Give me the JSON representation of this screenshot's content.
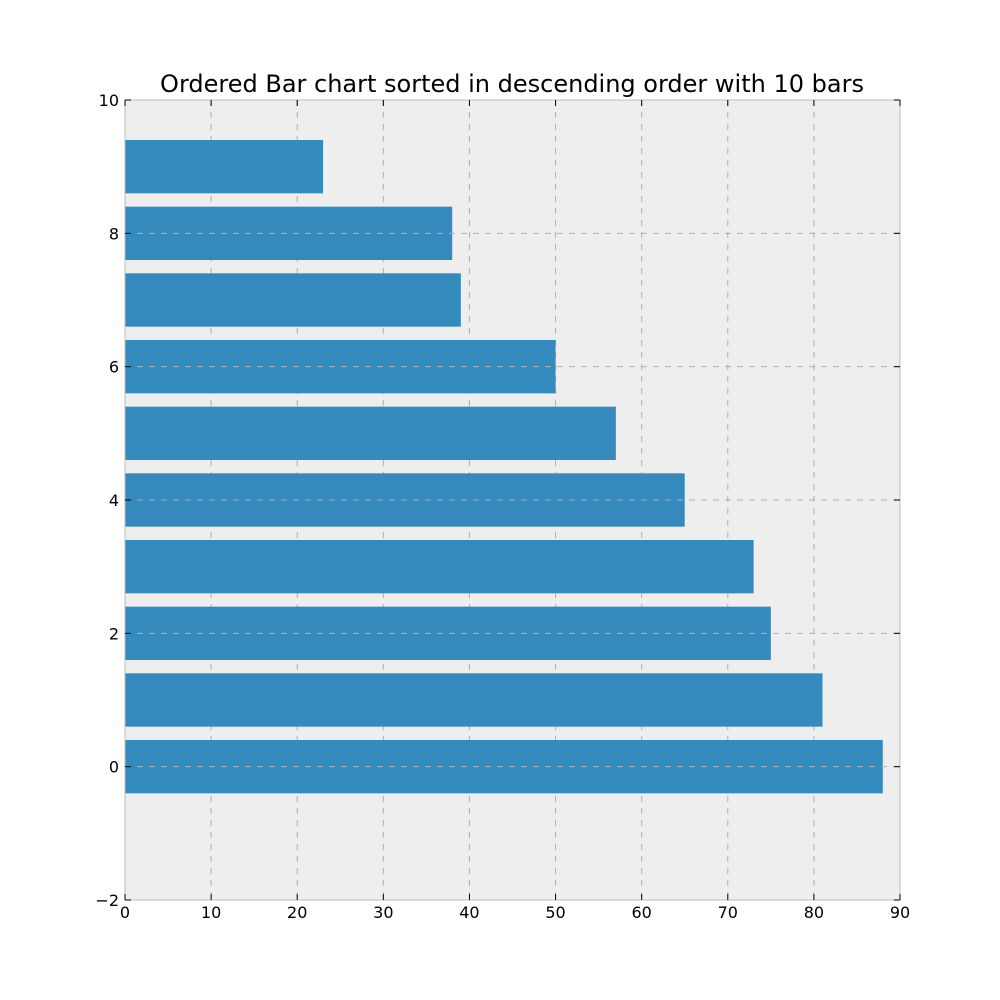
{
  "chart_data": {
    "type": "bar",
    "orientation": "horizontal",
    "title": "Ordered Bar chart sorted in descending order with 10 bars",
    "xlabel": "",
    "ylabel": "",
    "categories": [
      0,
      1,
      2,
      3,
      4,
      5,
      6,
      7,
      8,
      9
    ],
    "values": [
      88,
      81,
      75,
      73,
      65,
      57,
      50,
      39,
      38,
      23
    ],
    "bar_height": 0.8,
    "xlim": [
      0,
      90
    ],
    "ylim": [
      -2,
      10
    ],
    "xticks": [
      "0",
      "10",
      "20",
      "30",
      "40",
      "50",
      "60",
      "70",
      "80",
      "90"
    ],
    "yticks": [
      "−2",
      "0",
      "2",
      "4",
      "6",
      "8",
      "10"
    ],
    "grid": true,
    "legend": "none",
    "colors": {
      "bar": "#348abd",
      "plot_background": "#eeeeee",
      "grid": "#b0b0b0",
      "axes_edge": "#bcbcbc",
      "text": "#000000"
    }
  }
}
